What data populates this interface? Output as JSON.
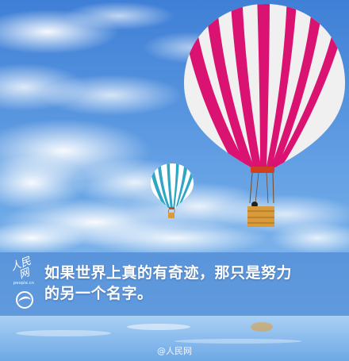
{
  "caption": {
    "line1": "如果世界上真的有奇迹，那只是努力",
    "line2": "的另一个名字。"
  },
  "logo": {
    "script": "人民网",
    "url": "people.cn"
  },
  "watermark": "@人民网",
  "colors": {
    "sky_top": "#3f7fd6",
    "sky_bottom": "#8ec2f0",
    "balloon_stripe": "#e8157a",
    "balloon_small": "#2ea6c4",
    "band": "#4682d2"
  }
}
